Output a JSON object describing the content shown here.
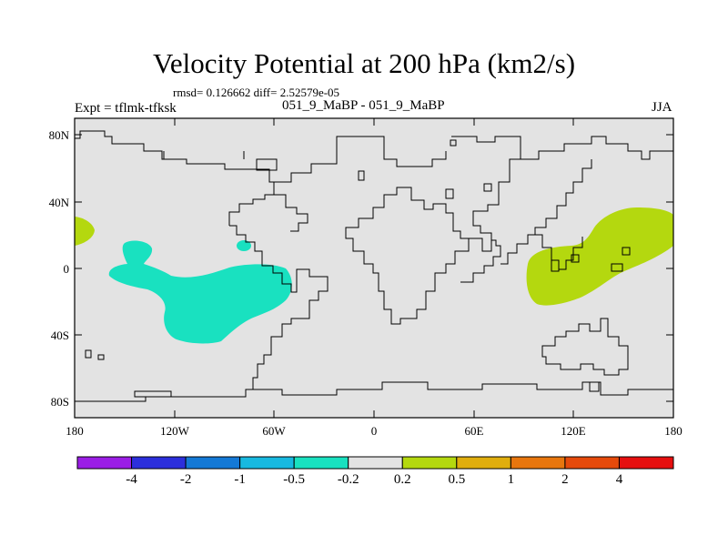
{
  "title": "Velocity Potential at 200 hPa (km2/s)",
  "stats": "rmsd= 0.126662 diff= 2.52579e-05",
  "expt": "Expt = tflmk-tfksk",
  "comparison": "051_9_MaBP - 051_9_MaBP",
  "season": "JJA",
  "lat_labels": [
    "80N",
    "40N",
    "0",
    "40S",
    "80S"
  ],
  "lon_labels": [
    "180",
    "120W",
    "60W",
    "0",
    "60E",
    "120E",
    "180"
  ],
  "colorbar": {
    "colors": [
      "#9b1ee6",
      "#2c2fdc",
      "#1479d6",
      "#18b9e0",
      "#19e1c0",
      "#e3e3e3",
      "#b4d80f",
      "#e0ae0e",
      "#e8760e",
      "#e64a0b",
      "#e60f0f"
    ],
    "labels": [
      "-4",
      "-2",
      "-1",
      "-0.5",
      "-0.2",
      "0.2",
      "0.5",
      "1",
      "2",
      "4"
    ]
  },
  "colors": {
    "background": "#e3e3e3",
    "negative_fill": "#19e1c0",
    "positive_fill": "#b4d80f"
  }
}
